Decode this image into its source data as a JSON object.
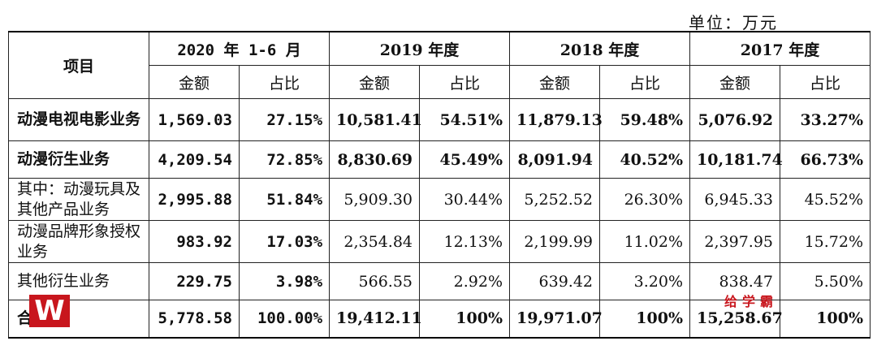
{
  "unit": "单位：万元",
  "headers": {
    "item": "项目",
    "periods": [
      "2020 年 1-6 月",
      "2019 年度",
      "2018 年度",
      "2017 年度"
    ],
    "amount": "金额",
    "ratio": "占比"
  },
  "rows": [
    {
      "label": "动漫电视电影业务",
      "bold": true,
      "cells": [
        "1,569.03",
        "27.15%",
        "10,581.41",
        "54.51%",
        "11,879.13",
        "59.48%",
        "5,076.92",
        "33.27%"
      ]
    },
    {
      "label": "动漫衍生业务",
      "bold": true,
      "cells": [
        "4,209.54",
        "72.85%",
        "8,830.69",
        "45.49%",
        "8,091.94",
        "40.52%",
        "10,181.74",
        "66.73%"
      ]
    },
    {
      "label": "其中：动漫玩具及其他产品业务",
      "bold": false,
      "cells": [
        "2,995.88",
        "51.84%",
        "5,909.30",
        "30.44%",
        "5,252.52",
        "26.30%",
        "6,945.33",
        "45.52%"
      ]
    },
    {
      "label": "动漫品牌形象授权业务",
      "bold": false,
      "cells": [
        "983.92",
        "17.03%",
        "2,354.84",
        "12.13%",
        "2,199.99",
        "11.02%",
        "2,397.95",
        "15.72%"
      ]
    },
    {
      "label": "其他衍生业务",
      "bold": false,
      "cells": [
        "229.75",
        "3.98%",
        "566.55",
        "2.92%",
        "639.42",
        "3.20%",
        "838.47",
        "5.50%"
      ]
    },
    {
      "label": "合计",
      "bold": true,
      "cells": [
        "5,778.58",
        "100.00%",
        "19,412.11",
        "100%",
        "19,971.07",
        "100%",
        "15,258.67",
        "100%"
      ]
    }
  ],
  "watermark": {
    "logo_letter": "W",
    "text": "给学霸"
  }
}
